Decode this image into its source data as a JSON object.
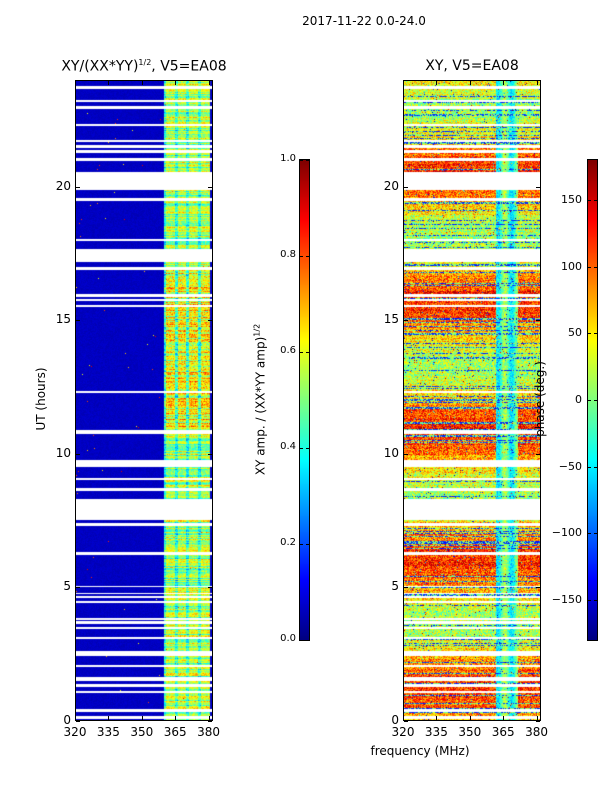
{
  "figure": {
    "suptitle": "2017-11-22 0.0-24.0",
    "xlabel": "frequency (MHz)"
  },
  "chart_data": [
    {
      "type": "heatmap",
      "title_main": "XY/(XX*YY)",
      "title_sup": "1/2",
      "title_suffix": ", V5=EA08",
      "ylabel": "UT (hours)",
      "xlim": [
        320,
        382
      ],
      "ylim": [
        0,
        24
      ],
      "xticks": [
        320,
        335,
        350,
        365,
        380
      ],
      "yticks": [
        0,
        5,
        10,
        15,
        20
      ],
      "colormap": "jet",
      "background_value": 0.05,
      "bright_band_mhz": [
        360,
        381
      ],
      "bright_subcolumns_mhz": [
        [
          361,
          365
        ],
        [
          366.5,
          370
        ],
        [
          371.5,
          375.5
        ],
        [
          377,
          381
        ]
      ],
      "colorbar": {
        "label_main": "XY amp. / (XX*YY amp)",
        "label_sup": "1/2",
        "range": [
          0.0,
          1.0
        ],
        "ticks": [
          "0.0",
          "0.2",
          "0.4",
          "0.6",
          "0.8",
          "1.0"
        ]
      }
    },
    {
      "type": "heatmap",
      "title_main": "XY, V5=EA08",
      "ylabel": "",
      "xlim": [
        320,
        382
      ],
      "ylim": [
        0,
        24
      ],
      "xticks": [
        320,
        335,
        350,
        365,
        380
      ],
      "yticks": [
        0,
        5,
        10,
        15,
        20
      ],
      "colormap": "jet",
      "colorbar": {
        "label_main": "phase (deg.)",
        "range": [
          -180,
          180
        ],
        "ticks": [
          "−150",
          "−100",
          "−50",
          "0",
          "50",
          "100",
          "150"
        ],
        "tick_values": [
          -150,
          -100,
          -50,
          0,
          50,
          100,
          150
        ]
      }
    }
  ],
  "flagged_ut_hours": [
    [
      0.05,
      0.15
    ],
    [
      0.3,
      0.4
    ],
    [
      1.0,
      1.1
    ],
    [
      1.25,
      1.35
    ],
    [
      1.45,
      1.6
    ],
    [
      2.0,
      2.08
    ],
    [
      2.4,
      2.6
    ],
    [
      3.05,
      3.12
    ],
    [
      3.4,
      3.5
    ],
    [
      3.6,
      3.7
    ],
    [
      3.75,
      3.82
    ],
    [
      4.4,
      4.46
    ],
    [
      4.6,
      4.66
    ],
    [
      4.72,
      4.78
    ],
    [
      4.98,
      5.04
    ],
    [
      6.2,
      6.3
    ],
    [
      7.3,
      7.4
    ],
    [
      7.5,
      8.3
    ],
    [
      8.6,
      8.7
    ],
    [
      9.0,
      9.1
    ],
    [
      9.5,
      9.75
    ],
    [
      10.75,
      10.9
    ],
    [
      12.3,
      12.35
    ],
    [
      15.5,
      15.6
    ],
    [
      15.75,
      15.8
    ],
    [
      15.9,
      16.0
    ],
    [
      16.9,
      17.0
    ],
    [
      17.2,
      17.7
    ],
    [
      18.0,
      18.08
    ],
    [
      19.5,
      19.6
    ],
    [
      19.9,
      20.6
    ],
    [
      21.0,
      21.1
    ],
    [
      21.3,
      21.4
    ],
    [
      21.5,
      21.6
    ],
    [
      21.7,
      21.8
    ],
    [
      22.3,
      22.4
    ],
    [
      22.95,
      23.05
    ],
    [
      23.2,
      23.3
    ],
    [
      23.7,
      23.8
    ]
  ]
}
